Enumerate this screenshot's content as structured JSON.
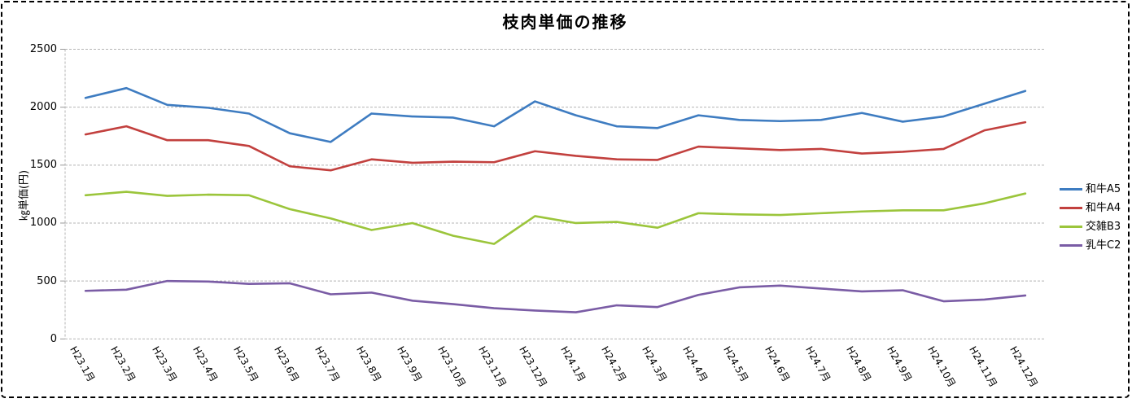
{
  "panel": {
    "background": "#ffffff",
    "border_color": "#000000",
    "gridline_color": "#b4b4b4",
    "axis_tick_color": "#9a9a9a"
  },
  "chart_data": {
    "type": "line",
    "title": "枝肉単価の推移",
    "ylabel": "㎏単価(円)",
    "xlabel": "",
    "ylim": [
      0,
      2500
    ],
    "yticks": [
      0,
      500,
      1000,
      1500,
      2000,
      2500
    ],
    "grid": true,
    "legend_position": "right",
    "x_label_rotation_deg": 60,
    "categories": [
      "H23.1月",
      "H23.2月",
      "H23.3月",
      "H23.4月",
      "H23.5月",
      "H23.6月",
      "H23.7月",
      "H23.8月",
      "H23.9月",
      "H23.10月",
      "H23.11月",
      "H23.12月",
      "H24.1月",
      "H24.2月",
      "H24.3月",
      "H24.4月",
      "H24.5月",
      "H24.6月",
      "H24.7月",
      "H24.8月",
      "H24.9月",
      "H24.10月",
      "H24.11月",
      "H24.12月"
    ],
    "series": [
      {
        "name": "和牛A5",
        "key": "wagyu-a5",
        "color": "#3E7CC1",
        "values": [
          2080,
          2165,
          2020,
          1995,
          1945,
          1775,
          1700,
          1945,
          1920,
          1910,
          1835,
          2050,
          1930,
          1835,
          1820,
          1930,
          1890,
          1880,
          1890,
          1950,
          1875,
          1920,
          2030,
          2140
        ]
      },
      {
        "name": "和牛A4",
        "key": "wagyu-a4",
        "color": "#C2403E",
        "values": [
          1765,
          1835,
          1715,
          1715,
          1665,
          1490,
          1455,
          1550,
          1520,
          1530,
          1525,
          1620,
          1580,
          1550,
          1545,
          1660,
          1645,
          1630,
          1640,
          1600,
          1615,
          1640,
          1800,
          1870
        ]
      },
      {
        "name": "交雑B3",
        "key": "kozatsu-b3",
        "color": "#9BC53B",
        "values": [
          1240,
          1270,
          1235,
          1245,
          1240,
          1120,
          1040,
          940,
          1000,
          890,
          820,
          1060,
          1000,
          1010,
          960,
          1085,
          1075,
          1070,
          1085,
          1100,
          1110,
          1110,
          1170,
          1255
        ]
      },
      {
        "name": "乳牛C2",
        "key": "nyugyu-c2",
        "color": "#7A5CA5",
        "values": [
          415,
          425,
          500,
          495,
          475,
          480,
          385,
          400,
          330,
          300,
          265,
          245,
          230,
          290,
          275,
          380,
          445,
          460,
          435,
          410,
          420,
          325,
          340,
          375
        ]
      }
    ]
  }
}
